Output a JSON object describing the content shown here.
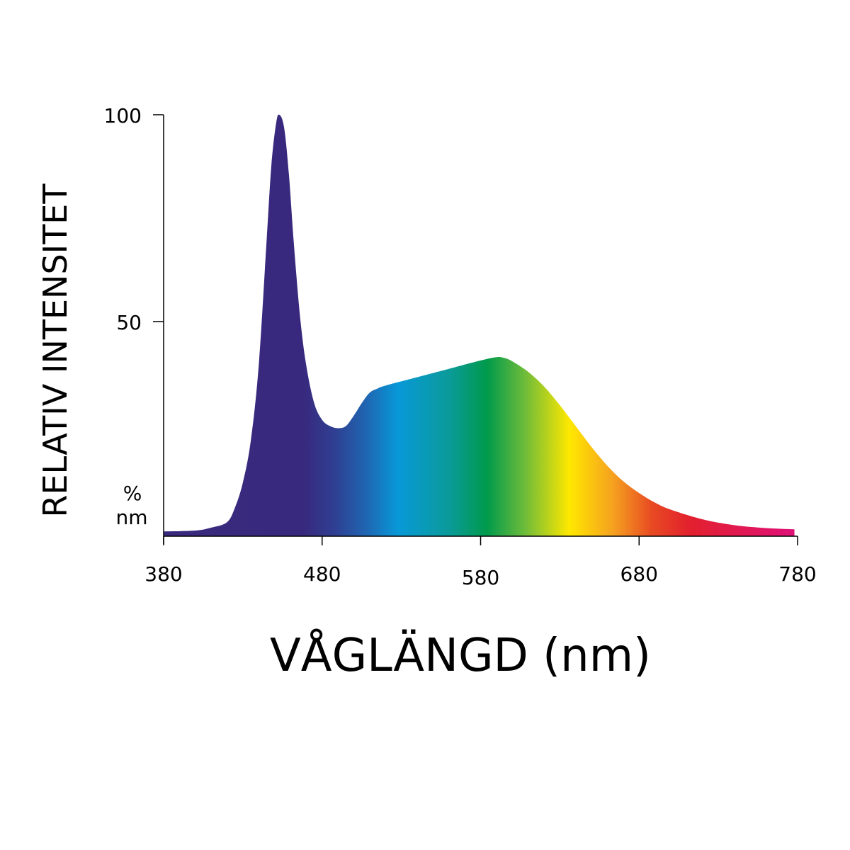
{
  "chart_data": {
    "type": "area",
    "title": "",
    "xlabel": "VÅGLÄNGD (nm)",
    "ylabel": "RELATIV INTENSITET",
    "yunit": [
      "%",
      "nm"
    ],
    "xlim": [
      380,
      780
    ],
    "ylim": [
      0,
      100
    ],
    "xticks": [
      380,
      480,
      580,
      680,
      780
    ],
    "xtick_labels": [
      "380",
      "480",
      "580",
      "680",
      "780"
    ],
    "yticks": [
      50,
      100
    ],
    "ytick_labels": [
      "50",
      "100"
    ],
    "grid": false,
    "fill": "spectral gradient by wavelength",
    "x": [
      380,
      400,
      410,
      420,
      425,
      430,
      435,
      440,
      445,
      448,
      451,
      453,
      456,
      459,
      462,
      466,
      470,
      475,
      480,
      485,
      490,
      495,
      500,
      505,
      510,
      515,
      520,
      540,
      560,
      580,
      590,
      595,
      600,
      610,
      620,
      630,
      640,
      650,
      660,
      670,
      680,
      690,
      700,
      720,
      740,
      760,
      778
    ],
    "y": [
      0.3,
      0.5,
      1.2,
      2.5,
      6,
      12,
      22,
      40,
      70,
      88,
      98,
      100,
      97,
      86,
      70,
      52,
      40,
      31,
      27,
      25.5,
      25,
      25.5,
      28,
      31,
      33.5,
      34.5,
      35.2,
      37.2,
      39.2,
      41.2,
      42,
      41.8,
      41,
      38.5,
      35,
      30.5,
      25.5,
      20.5,
      16,
      12.3,
      9.5,
      7.2,
      5.5,
      3.2,
      1.8,
      1.1,
      0.8
    ]
  }
}
